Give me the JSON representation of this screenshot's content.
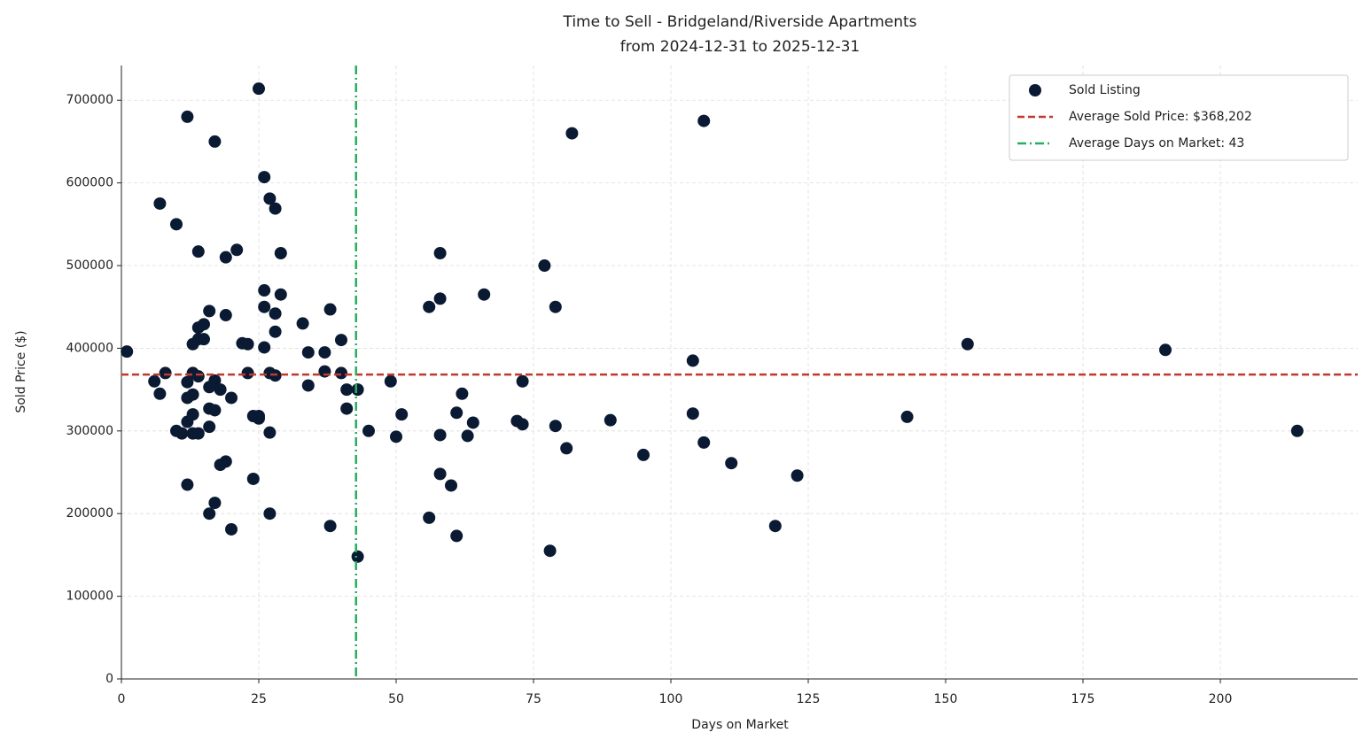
{
  "chart_data": {
    "type": "scatter",
    "title": "Time to Sell - Bridgeland/Riverside Apartments",
    "subtitle": "from 2024-12-31 to 2025-12-31",
    "x_label": "Days on Market",
    "y_label": "Sold Price ($)",
    "xlim": [
      0,
      225
    ],
    "ylim": [
      0,
      742000
    ],
    "xticks": [
      0,
      25,
      50,
      75,
      100,
      125,
      150,
      175,
      200
    ],
    "yticks": [
      0,
      100000,
      200000,
      300000,
      400000,
      500000,
      600000,
      700000
    ],
    "grid": true,
    "legend": "upper right",
    "series": [
      {
        "name": "Sold Listing",
        "color": "#0a1a33",
        "x": [
          1,
          6,
          7,
          7,
          8,
          10,
          10,
          11,
          12,
          12,
          12,
          12,
          12,
          13,
          13,
          13,
          13,
          13,
          14,
          14,
          14,
          14,
          14,
          15,
          15,
          16,
          16,
          16,
          16,
          16,
          17,
          17,
          17,
          17,
          18,
          18,
          19,
          19,
          19,
          20,
          20,
          21,
          22,
          23,
          23,
          24,
          24,
          25,
          25,
          25,
          26,
          26,
          26,
          26,
          27,
          27,
          27,
          27,
          28,
          28,
          28,
          28,
          29,
          29,
          33,
          34,
          34,
          37,
          37,
          38,
          38,
          40,
          40,
          41,
          41,
          43,
          43,
          45,
          49,
          50,
          51,
          56,
          56,
          58,
          58,
          58,
          58,
          60,
          61,
          61,
          62,
          63,
          64,
          66,
          72,
          73,
          73,
          77,
          78,
          79,
          79,
          81,
          82,
          89,
          95,
          104,
          104,
          106,
          106,
          111,
          119,
          123,
          143,
          154,
          190,
          214
        ],
        "values": [
          396000,
          360000,
          575000,
          345000,
          370000,
          550000,
          300000,
          297000,
          680000,
          235000,
          359000,
          340000,
          311000,
          405000,
          370000,
          344000,
          320000,
          297000,
          517000,
          425000,
          366000,
          297000,
          411000,
          411000,
          429000,
          445000,
          353000,
          327000,
          305000,
          200000,
          650000,
          361000,
          325000,
          213000,
          350000,
          259000,
          510000,
          440000,
          263000,
          340000,
          181000,
          519000,
          406000,
          405000,
          370000,
          242000,
          318000,
          714000,
          315000,
          318000,
          607000,
          470000,
          450000,
          401000,
          581000,
          370000,
          298000,
          200000,
          569000,
          442000,
          420000,
          367000,
          515000,
          465000,
          430000,
          395000,
          355000,
          395000,
          372000,
          447000,
          185000,
          410000,
          370000,
          350000,
          327000,
          350000,
          148000,
          300000,
          360000,
          293000,
          320000,
          450000,
          195000,
          515000,
          460000,
          295000,
          248000,
          234000,
          322000,
          173000,
          345000,
          294000,
          310000,
          465000,
          312000,
          360000,
          308000,
          500000,
          155000,
          450000,
          306000,
          279000,
          660000,
          313000,
          271000,
          385000,
          321000,
          675000,
          286000,
          261000,
          185000,
          246000,
          317000,
          405000,
          398000,
          300000
        ]
      }
    ],
    "reference_lines": [
      {
        "orientation": "horizontal",
        "value": 368202,
        "label": "Average Sold Price: $368,202",
        "color": "#c0392b",
        "style": "dashed"
      },
      {
        "orientation": "vertical",
        "value": 42.7,
        "label": "Average Days on Market: 43",
        "color": "#27ae60",
        "style": "dashdot"
      }
    ]
  }
}
